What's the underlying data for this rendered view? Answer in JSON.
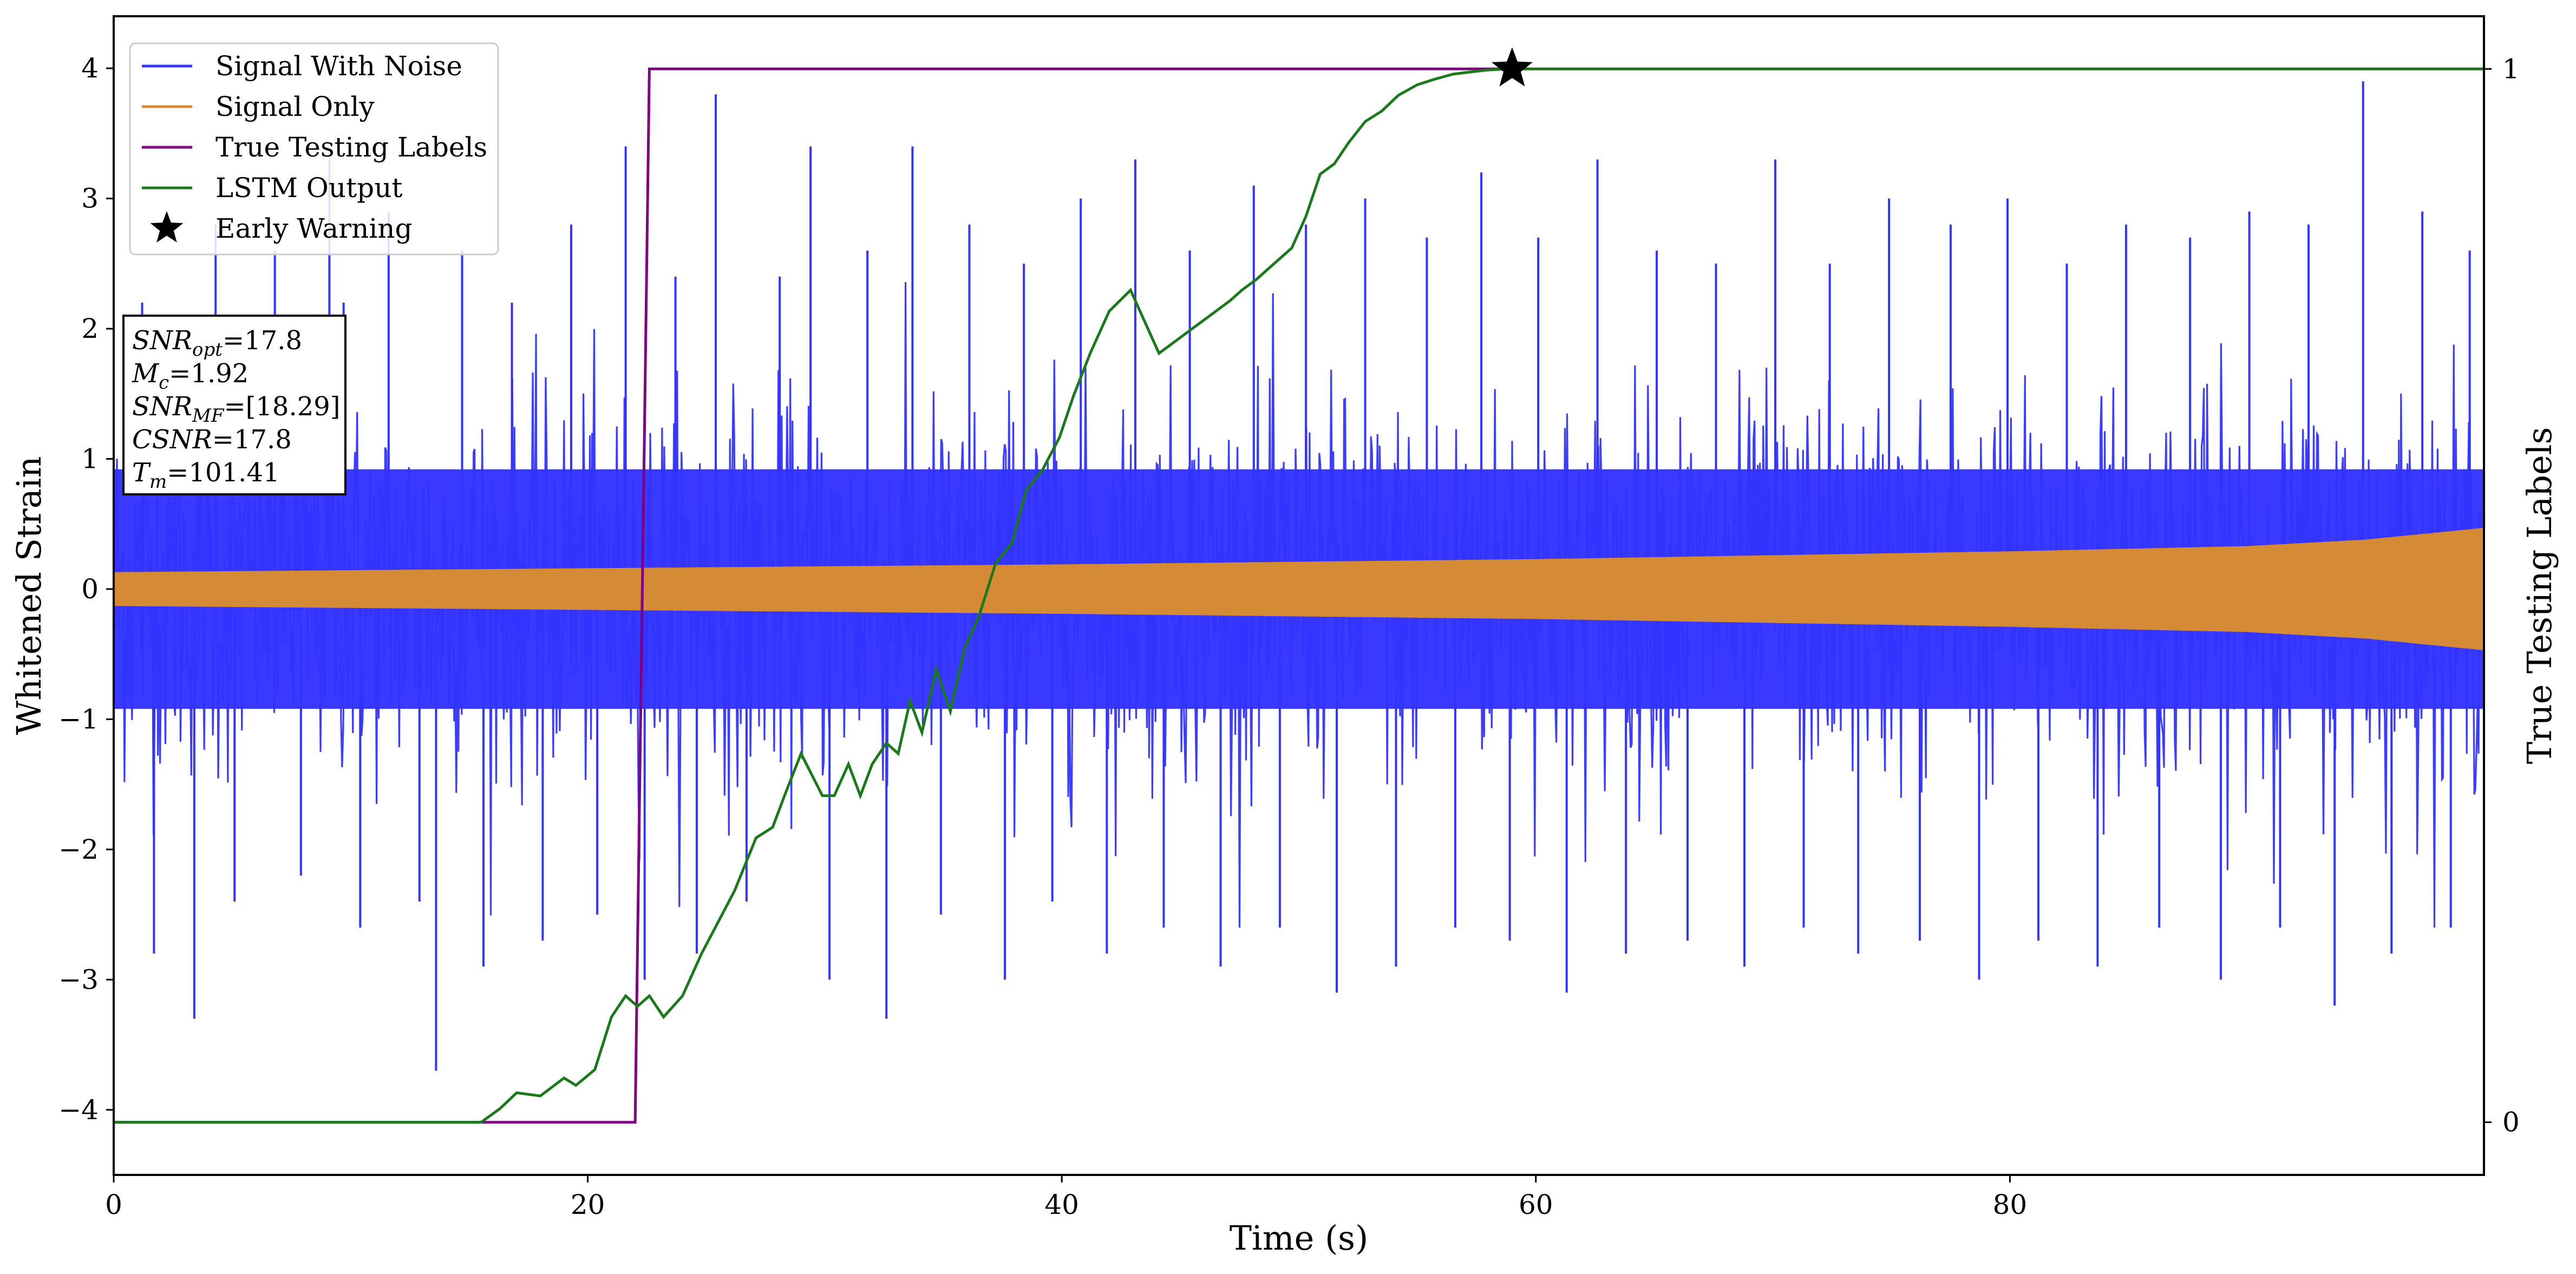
{
  "chart_data": {
    "type": "line",
    "xlabel": "Time (s)",
    "ylabel": "Whitened Strain",
    "ylabel_right": "True Testing Labels",
    "xlim": [
      0,
      100
    ],
    "ylim": [
      -4.5,
      4.4
    ],
    "ylim_right": [
      -0.05,
      1.05
    ],
    "x_ticks": [
      0,
      20,
      40,
      60,
      80
    ],
    "y_ticks": [
      -4,
      -3,
      -2,
      -1,
      0,
      1,
      2,
      3,
      4
    ],
    "y_ticks_right": [
      0,
      1
    ],
    "legend_position": "upper-left",
    "series": [
      {
        "name": "Signal With Noise",
        "color": "#3333ff",
        "style": "dense-noise",
        "note_values": "band approx ±0.9 with spikes to about ±3.9",
        "spikes": [
          [
            1.2,
            2.2
          ],
          [
            1.7,
            -2.8
          ],
          [
            2.6,
            2.1
          ],
          [
            3.4,
            -3.3
          ],
          [
            4.3,
            2.8
          ],
          [
            5.1,
            -2.4
          ],
          [
            6.8,
            2.6
          ],
          [
            7.9,
            -2.2
          ],
          [
            9.1,
            3.3
          ],
          [
            9.7,
            2.2
          ],
          [
            10.4,
            -2.6
          ],
          [
            11.6,
            2.9
          ],
          [
            12.9,
            -2.4
          ],
          [
            13.6,
            -3.7
          ],
          [
            14.7,
            2.6
          ],
          [
            15.6,
            -2.9
          ],
          [
            16.8,
            2.2
          ],
          [
            18.1,
            -2.7
          ],
          [
            19.3,
            2.8
          ],
          [
            20.4,
            -2.5
          ],
          [
            21.6,
            3.4
          ],
          [
            22.4,
            -3.0
          ],
          [
            23.7,
            2.4
          ],
          [
            24.6,
            -2.8
          ],
          [
            25.4,
            3.8
          ],
          [
            26.7,
            -2.4
          ],
          [
            28.1,
            2.4
          ],
          [
            29.4,
            3.4
          ],
          [
            30.2,
            -3.0
          ],
          [
            31.8,
            2.6
          ],
          [
            32.6,
            -3.3
          ],
          [
            33.7,
            3.4
          ],
          [
            34.9,
            -2.5
          ],
          [
            36.1,
            2.8
          ],
          [
            37.6,
            -3.0
          ],
          [
            38.4,
            2.5
          ],
          [
            39.6,
            -2.4
          ],
          [
            40.8,
            3.0
          ],
          [
            41.9,
            -2.8
          ],
          [
            43.1,
            3.3
          ],
          [
            44.3,
            -2.6
          ],
          [
            45.4,
            2.6
          ],
          [
            46.7,
            -2.9
          ],
          [
            48.1,
            3.1
          ],
          [
            49.2,
            -2.6
          ],
          [
            50.3,
            2.8
          ],
          [
            51.6,
            -3.1
          ],
          [
            52.8,
            3.0
          ],
          [
            54.1,
            -2.9
          ],
          [
            55.4,
            2.7
          ],
          [
            56.6,
            -2.6
          ],
          [
            57.7,
            3.2
          ],
          [
            58.9,
            -2.7
          ],
          [
            60.1,
            2.7
          ],
          [
            61.3,
            -3.1
          ],
          [
            62.6,
            3.3
          ],
          [
            63.8,
            -2.8
          ],
          [
            65.1,
            2.6
          ],
          [
            66.4,
            -2.7
          ],
          [
            67.6,
            2.5
          ],
          [
            68.8,
            -2.9
          ],
          [
            70.1,
            3.3
          ],
          [
            71.3,
            -2.6
          ],
          [
            72.4,
            2.5
          ],
          [
            73.6,
            -2.8
          ],
          [
            74.9,
            3.0
          ],
          [
            76.2,
            -2.7
          ],
          [
            77.5,
            2.8
          ],
          [
            78.7,
            -3.0
          ],
          [
            79.9,
            3.0
          ],
          [
            81.2,
            -2.7
          ],
          [
            82.4,
            2.5
          ],
          [
            83.7,
            -2.9
          ],
          [
            84.9,
            2.8
          ],
          [
            86.3,
            -2.6
          ],
          [
            87.6,
            2.7
          ],
          [
            88.9,
            -3.0
          ],
          [
            90.1,
            2.9
          ],
          [
            91.4,
            -2.6
          ],
          [
            92.6,
            2.8
          ],
          [
            93.7,
            -3.2
          ],
          [
            94.9,
            3.9
          ],
          [
            96.1,
            -2.8
          ],
          [
            97.4,
            2.9
          ],
          [
            98.6,
            -2.6
          ],
          [
            99.4,
            2.6
          ]
        ]
      },
      {
        "name": "Signal Only",
        "color": "#d58a35",
        "style": "chirp-envelope",
        "envelope_x": [
          0,
          20,
          40,
          60,
          80,
          90,
          95,
          100
        ],
        "envelope_y": [
          0.13,
          0.16,
          0.19,
          0.23,
          0.29,
          0.33,
          0.38,
          0.47
        ]
      },
      {
        "name": "True Testing Labels",
        "color": "#800080",
        "axis": "right",
        "x": [
          0,
          22.0,
          22.6,
          100
        ],
        "y": [
          0,
          0,
          1,
          1
        ]
      },
      {
        "name": "LSTM Output",
        "color": "#1a7a1a",
        "axis": "right",
        "x": [
          0,
          15.5,
          16.3,
          17.0,
          18.0,
          19.0,
          19.5,
          20.3,
          21.0,
          21.6,
          22.1,
          22.6,
          23.2,
          24.0,
          24.8,
          25.5,
          26.2,
          27.1,
          27.8,
          28.3,
          29.0,
          29.9,
          30.4,
          31.0,
          31.5,
          32.0,
          32.6,
          33.1,
          33.6,
          34.1,
          34.7,
          35.3,
          35.9,
          36.5,
          37.2,
          37.9,
          38.5,
          39.2,
          39.9,
          40.5,
          41.2,
          42.0,
          42.9,
          43.5,
          44.1,
          44.7,
          45.3,
          45.9,
          46.5,
          47.1,
          47.6,
          48.2,
          48.7,
          49.2,
          49.7,
          50.3,
          50.9,
          51.5,
          52.1,
          52.8,
          53.5,
          54.2,
          55.0,
          55.7,
          56.5,
          57.2,
          58.0,
          58.8,
          60.0,
          62.0,
          100
        ],
        "y": [
          0,
          0,
          0.013,
          0.028,
          0.025,
          0.042,
          0.035,
          0.05,
          0.1,
          0.12,
          0.11,
          0.12,
          0.1,
          0.12,
          0.16,
          0.19,
          0.22,
          0.27,
          0.28,
          0.31,
          0.35,
          0.31,
          0.31,
          0.34,
          0.31,
          0.34,
          0.36,
          0.35,
          0.4,
          0.37,
          0.43,
          0.39,
          0.45,
          0.48,
          0.53,
          0.55,
          0.6,
          0.62,
          0.65,
          0.69,
          0.73,
          0.77,
          0.79,
          0.76,
          0.73,
          0.74,
          0.75,
          0.76,
          0.77,
          0.78,
          0.79,
          0.8,
          0.81,
          0.82,
          0.83,
          0.86,
          0.9,
          0.91,
          0.93,
          0.95,
          0.96,
          0.975,
          0.985,
          0.99,
          0.995,
          0.997,
          0.999,
          1.0,
          1.0,
          1.0,
          1.0
        ]
      }
    ],
    "early_warning": {
      "label": "Early Warning",
      "x": 59.0,
      "y": 1.0,
      "axis": "right",
      "marker": "star"
    },
    "annotations": [
      {
        "prefix": "SNR",
        "sub": "opt",
        "value": "=17.8"
      },
      {
        "prefix": "M",
        "sub": "c",
        "value": "=1.92"
      },
      {
        "prefix": "SNR",
        "sub": "MF",
        "value": "=[18.29]"
      },
      {
        "prefix": "CSNR",
        "sub": "",
        "value": "=17.8"
      },
      {
        "prefix": "T",
        "sub": "m",
        "value": "=101.41"
      }
    ]
  }
}
